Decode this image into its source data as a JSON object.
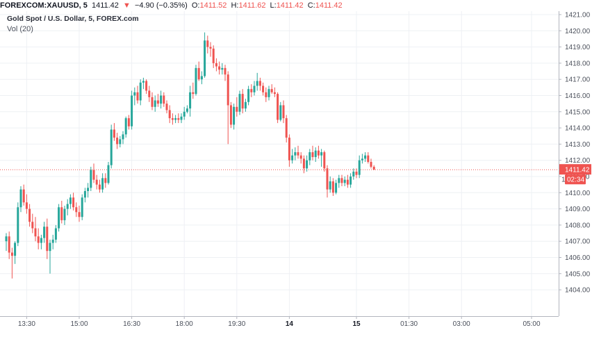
{
  "header": {
    "symbol": "FOREXCOM:XAUUSD, 5",
    "last": "1411.42",
    "change_arrow": "▼",
    "change": "−4.90 (−0.35%)",
    "o_label": "O:",
    "o": "1411.52",
    "h_label": "H:",
    "h": "1411.62",
    "l_label": "L:",
    "l": "1411.42",
    "c_label": "C:",
    "c": "1411.42"
  },
  "legend": {
    "title": "Gold Spot / U.S. Dollar, 5, FOREX.com",
    "volume": "Vol (20)"
  },
  "colors": {
    "up": "#26a69a",
    "down": "#ef5350",
    "price_line": "#ef5350",
    "countdown_bg": "#ef5350"
  },
  "chart_data": {
    "type": "candlestick",
    "title": "Gold Spot / U.S. Dollar, 5, FOREX.com",
    "ylim": [
      1403.3,
      1421.6
    ],
    "y_ticks": [
      "1404.00",
      "1405.00",
      "1406.00",
      "1407.00",
      "1408.00",
      "1409.00",
      "1410.00",
      "1411.00",
      "1412.00",
      "1413.00",
      "1414.00",
      "1415.00",
      "1416.00",
      "1417.00",
      "1418.00",
      "1419.00",
      "1420.00",
      "1421.00"
    ],
    "x_ticks": [
      {
        "label": "13:30",
        "bar": 7,
        "bold": false
      },
      {
        "label": "15:00",
        "bar": 25,
        "bold": false
      },
      {
        "label": "16:30",
        "bar": 43,
        "bold": false
      },
      {
        "label": "18:00",
        "bar": 61,
        "bold": false
      },
      {
        "label": "19:30",
        "bar": 79,
        "bold": false
      },
      {
        "label": "14",
        "bar": 97,
        "bold": true
      },
      {
        "label": "15",
        "bar": 120,
        "bold": true
      },
      {
        "label": "01:30",
        "bar": 138,
        "bold": false
      },
      {
        "label": "03:00",
        "bar": 156,
        "bold": false
      },
      {
        "label": "05:00",
        "bar": 180,
        "bold": false
      }
    ],
    "last_price": 1411.42,
    "last_price_label": "1411.42",
    "countdown": "02:34",
    "axis_partial_label": "1",
    "candles": [
      {
        "o": 1407.0,
        "h": 1407.5,
        "l": 1406.4,
        "c": 1407.3
      },
      {
        "o": 1407.3,
        "h": 1407.6,
        "l": 1405.9,
        "c": 1406.3
      },
      {
        "o": 1406.3,
        "h": 1406.6,
        "l": 1404.7,
        "c": 1406.1
      },
      {
        "o": 1406.1,
        "h": 1407.0,
        "l": 1405.6,
        "c": 1406.9
      },
      {
        "o": 1406.9,
        "h": 1409.4,
        "l": 1406.7,
        "c": 1409.1
      },
      {
        "o": 1409.1,
        "h": 1410.4,
        "l": 1408.8,
        "c": 1410.2
      },
      {
        "o": 1410.2,
        "h": 1410.5,
        "l": 1409.2,
        "c": 1409.4
      },
      {
        "o": 1409.4,
        "h": 1409.9,
        "l": 1408.7,
        "c": 1409.0
      },
      {
        "o": 1409.0,
        "h": 1409.3,
        "l": 1407.9,
        "c": 1408.2
      },
      {
        "o": 1408.2,
        "h": 1408.7,
        "l": 1407.5,
        "c": 1407.8
      },
      {
        "o": 1407.8,
        "h": 1408.5,
        "l": 1407.0,
        "c": 1407.3
      },
      {
        "o": 1407.3,
        "h": 1407.8,
        "l": 1406.5,
        "c": 1406.9
      },
      {
        "o": 1406.9,
        "h": 1407.4,
        "l": 1406.5,
        "c": 1407.2
      },
      {
        "o": 1407.2,
        "h": 1408.2,
        "l": 1406.9,
        "c": 1407.9
      },
      {
        "o": 1407.9,
        "h": 1408.4,
        "l": 1405.9,
        "c": 1406.4
      },
      {
        "o": 1406.4,
        "h": 1407.1,
        "l": 1405.0,
        "c": 1406.9
      },
      {
        "o": 1406.9,
        "h": 1407.4,
        "l": 1406.5,
        "c": 1407.1
      },
      {
        "o": 1407.1,
        "h": 1408.0,
        "l": 1406.9,
        "c": 1407.8
      },
      {
        "o": 1407.8,
        "h": 1409.3,
        "l": 1407.6,
        "c": 1409.1
      },
      {
        "o": 1409.1,
        "h": 1409.5,
        "l": 1408.1,
        "c": 1408.3
      },
      {
        "o": 1408.3,
        "h": 1409.2,
        "l": 1408.0,
        "c": 1409.0
      },
      {
        "o": 1409.0,
        "h": 1409.6,
        "l": 1408.6,
        "c": 1409.3
      },
      {
        "o": 1409.3,
        "h": 1409.9,
        "l": 1409.0,
        "c": 1409.7
      },
      {
        "o": 1409.7,
        "h": 1410.0,
        "l": 1408.9,
        "c": 1409.1
      },
      {
        "o": 1409.1,
        "h": 1409.4,
        "l": 1408.5,
        "c": 1408.8
      },
      {
        "o": 1408.8,
        "h": 1409.2,
        "l": 1408.2,
        "c": 1408.5
      },
      {
        "o": 1408.5,
        "h": 1409.9,
        "l": 1408.3,
        "c": 1409.7
      },
      {
        "o": 1409.7,
        "h": 1410.3,
        "l": 1409.4,
        "c": 1410.1
      },
      {
        "o": 1410.1,
        "h": 1410.6,
        "l": 1409.7,
        "c": 1410.3
      },
      {
        "o": 1410.3,
        "h": 1411.6,
        "l": 1410.1,
        "c": 1411.4
      },
      {
        "o": 1411.4,
        "h": 1411.8,
        "l": 1410.6,
        "c": 1410.8
      },
      {
        "o": 1410.8,
        "h": 1411.1,
        "l": 1410.2,
        "c": 1410.5
      },
      {
        "o": 1410.5,
        "h": 1410.8,
        "l": 1410.0,
        "c": 1410.2
      },
      {
        "o": 1410.2,
        "h": 1411.2,
        "l": 1410.0,
        "c": 1410.9
      },
      {
        "o": 1410.9,
        "h": 1411.2,
        "l": 1410.3,
        "c": 1410.6
      },
      {
        "o": 1410.6,
        "h": 1411.9,
        "l": 1410.5,
        "c": 1411.7
      },
      {
        "o": 1411.7,
        "h": 1414.2,
        "l": 1411.5,
        "c": 1413.9
      },
      {
        "o": 1413.9,
        "h": 1414.3,
        "l": 1413.2,
        "c": 1413.4
      },
      {
        "o": 1413.4,
        "h": 1413.7,
        "l": 1412.7,
        "c": 1413.0
      },
      {
        "o": 1413.0,
        "h": 1413.5,
        "l": 1412.8,
        "c": 1413.3
      },
      {
        "o": 1413.3,
        "h": 1413.8,
        "l": 1413.0,
        "c": 1413.6
      },
      {
        "o": 1413.6,
        "h": 1414.7,
        "l": 1413.4,
        "c": 1414.6
      },
      {
        "o": 1414.6,
        "h": 1414.8,
        "l": 1413.9,
        "c": 1414.1
      },
      {
        "o": 1414.1,
        "h": 1416.3,
        "l": 1413.9,
        "c": 1416.0
      },
      {
        "o": 1416.0,
        "h": 1416.5,
        "l": 1415.4,
        "c": 1416.2
      },
      {
        "o": 1416.2,
        "h": 1416.6,
        "l": 1415.5,
        "c": 1415.7
      },
      {
        "o": 1415.7,
        "h": 1417.0,
        "l": 1415.4,
        "c": 1416.8
      },
      {
        "o": 1416.8,
        "h": 1417.1,
        "l": 1416.4,
        "c": 1416.9
      },
      {
        "o": 1416.9,
        "h": 1417.0,
        "l": 1416.1,
        "c": 1416.3
      },
      {
        "o": 1416.3,
        "h": 1416.6,
        "l": 1415.6,
        "c": 1415.9
      },
      {
        "o": 1415.9,
        "h": 1416.2,
        "l": 1415.1,
        "c": 1415.3
      },
      {
        "o": 1415.3,
        "h": 1416.0,
        "l": 1415.0,
        "c": 1415.7
      },
      {
        "o": 1415.7,
        "h": 1416.1,
        "l": 1415.3,
        "c": 1415.5
      },
      {
        "o": 1415.5,
        "h": 1416.3,
        "l": 1415.2,
        "c": 1416.0
      },
      {
        "o": 1416.0,
        "h": 1416.2,
        "l": 1415.3,
        "c": 1415.5
      },
      {
        "o": 1415.5,
        "h": 1415.7,
        "l": 1414.9,
        "c": 1415.1
      },
      {
        "o": 1415.1,
        "h": 1415.4,
        "l": 1414.3,
        "c": 1414.6
      },
      {
        "o": 1414.6,
        "h": 1414.9,
        "l": 1414.2,
        "c": 1414.5
      },
      {
        "o": 1414.5,
        "h": 1414.8,
        "l": 1414.3,
        "c": 1414.6
      },
      {
        "o": 1414.6,
        "h": 1414.9,
        "l": 1414.3,
        "c": 1414.5
      },
      {
        "o": 1414.5,
        "h": 1414.9,
        "l": 1414.3,
        "c": 1414.7
      },
      {
        "o": 1414.7,
        "h": 1415.3,
        "l": 1414.5,
        "c": 1415.0
      },
      {
        "o": 1415.0,
        "h": 1415.4,
        "l": 1414.9,
        "c": 1415.2
      },
      {
        "o": 1415.2,
        "h": 1416.6,
        "l": 1414.7,
        "c": 1416.2
      },
      {
        "o": 1416.2,
        "h": 1416.8,
        "l": 1415.8,
        "c": 1416.1
      },
      {
        "o": 1416.1,
        "h": 1417.9,
        "l": 1416.0,
        "c": 1417.7
      },
      {
        "o": 1417.7,
        "h": 1418.1,
        "l": 1416.9,
        "c": 1417.0
      },
      {
        "o": 1417.0,
        "h": 1417.5,
        "l": 1416.7,
        "c": 1417.2
      },
      {
        "o": 1417.2,
        "h": 1419.9,
        "l": 1417.1,
        "c": 1419.4
      },
      {
        "o": 1419.4,
        "h": 1419.7,
        "l": 1418.6,
        "c": 1419.0
      },
      {
        "o": 1419.0,
        "h": 1419.3,
        "l": 1418.4,
        "c": 1418.9
      },
      {
        "o": 1418.9,
        "h": 1419.1,
        "l": 1417.7,
        "c": 1418.0
      },
      {
        "o": 1418.0,
        "h": 1418.3,
        "l": 1417.5,
        "c": 1417.8
      },
      {
        "o": 1417.8,
        "h": 1418.1,
        "l": 1417.3,
        "c": 1417.6
      },
      {
        "o": 1417.6,
        "h": 1418.0,
        "l": 1417.3,
        "c": 1417.7
      },
      {
        "o": 1417.7,
        "h": 1417.9,
        "l": 1416.9,
        "c": 1417.3
      },
      {
        "o": 1417.3,
        "h": 1417.5,
        "l": 1413.0,
        "c": 1415.4
      },
      {
        "o": 1415.4,
        "h": 1415.6,
        "l": 1414.0,
        "c": 1414.2
      },
      {
        "o": 1414.2,
        "h": 1415.5,
        "l": 1413.9,
        "c": 1415.3
      },
      {
        "o": 1415.3,
        "h": 1415.9,
        "l": 1414.7,
        "c": 1415.0
      },
      {
        "o": 1415.0,
        "h": 1416.3,
        "l": 1414.8,
        "c": 1416.1
      },
      {
        "o": 1416.1,
        "h": 1416.4,
        "l": 1414.9,
        "c": 1415.2
      },
      {
        "o": 1415.2,
        "h": 1415.8,
        "l": 1415.0,
        "c": 1415.6
      },
      {
        "o": 1415.6,
        "h": 1416.6,
        "l": 1415.4,
        "c": 1416.4
      },
      {
        "o": 1416.4,
        "h": 1416.7,
        "l": 1415.9,
        "c": 1416.2
      },
      {
        "o": 1416.2,
        "h": 1416.9,
        "l": 1416.0,
        "c": 1416.6
      },
      {
        "o": 1416.6,
        "h": 1417.4,
        "l": 1416.3,
        "c": 1416.9
      },
      {
        "o": 1416.9,
        "h": 1417.1,
        "l": 1416.3,
        "c": 1416.6
      },
      {
        "o": 1416.6,
        "h": 1416.8,
        "l": 1416.0,
        "c": 1416.2
      },
      {
        "o": 1416.2,
        "h": 1416.5,
        "l": 1415.6,
        "c": 1415.9
      },
      {
        "o": 1415.9,
        "h": 1416.6,
        "l": 1415.7,
        "c": 1416.4
      },
      {
        "o": 1416.4,
        "h": 1416.7,
        "l": 1416.1,
        "c": 1416.2
      },
      {
        "o": 1416.2,
        "h": 1416.5,
        "l": 1415.9,
        "c": 1416.1
      },
      {
        "o": 1416.1,
        "h": 1416.2,
        "l": 1414.3,
        "c": 1414.5
      },
      {
        "o": 1414.5,
        "h": 1415.6,
        "l": 1414.4,
        "c": 1415.4
      },
      {
        "o": 1415.4,
        "h": 1415.7,
        "l": 1414.3,
        "c": 1414.6
      },
      {
        "o": 1414.6,
        "h": 1414.8,
        "l": 1413.1,
        "c": 1413.4
      },
      {
        "o": 1413.4,
        "h": 1413.6,
        "l": 1411.6,
        "c": 1412.0
      },
      {
        "o": 1412.0,
        "h": 1412.7,
        "l": 1411.8,
        "c": 1412.3
      },
      {
        "o": 1412.3,
        "h": 1412.8,
        "l": 1412.0,
        "c": 1412.5
      },
      {
        "o": 1412.5,
        "h": 1412.9,
        "l": 1412.1,
        "c": 1412.3
      },
      {
        "o": 1412.3,
        "h": 1412.5,
        "l": 1411.8,
        "c": 1412.1
      },
      {
        "o": 1412.1,
        "h": 1412.3,
        "l": 1411.2,
        "c": 1411.5
      },
      {
        "o": 1411.5,
        "h": 1412.3,
        "l": 1411.3,
        "c": 1412.0
      },
      {
        "o": 1412.0,
        "h": 1412.7,
        "l": 1411.7,
        "c": 1412.5
      },
      {
        "o": 1412.5,
        "h": 1412.9,
        "l": 1412.0,
        "c": 1412.2
      },
      {
        "o": 1412.2,
        "h": 1412.8,
        "l": 1411.9,
        "c": 1412.6
      },
      {
        "o": 1412.6,
        "h": 1412.9,
        "l": 1412.1,
        "c": 1412.3
      },
      {
        "o": 1412.3,
        "h": 1412.7,
        "l": 1411.6,
        "c": 1412.5
      },
      {
        "o": 1412.5,
        "h": 1412.6,
        "l": 1411.3,
        "c": 1411.5
      },
      {
        "o": 1411.5,
        "h": 1411.7,
        "l": 1409.7,
        "c": 1410.2
      },
      {
        "o": 1410.2,
        "h": 1411.0,
        "l": 1410.0,
        "c": 1410.7
      },
      {
        "o": 1410.7,
        "h": 1410.9,
        "l": 1409.8,
        "c": 1410.0
      },
      {
        "o": 1410.0,
        "h": 1410.8,
        "l": 1409.9,
        "c": 1410.6
      },
      {
        "o": 1410.6,
        "h": 1411.1,
        "l": 1410.3,
        "c": 1410.9
      },
      {
        "o": 1410.9,
        "h": 1411.1,
        "l": 1410.4,
        "c": 1410.6
      },
      {
        "o": 1410.6,
        "h": 1411.0,
        "l": 1410.4,
        "c": 1410.8
      },
      {
        "o": 1410.8,
        "h": 1411.1,
        "l": 1410.3,
        "c": 1410.5
      },
      {
        "o": 1410.5,
        "h": 1411.2,
        "l": 1410.3,
        "c": 1411.0
      },
      {
        "o": 1411.0,
        "h": 1411.5,
        "l": 1410.8,
        "c": 1411.3
      },
      {
        "o": 1411.3,
        "h": 1411.5,
        "l": 1410.9,
        "c": 1411.1
      },
      {
        "o": 1411.1,
        "h": 1412.3,
        "l": 1410.9,
        "c": 1412.0
      },
      {
        "o": 1412.0,
        "h": 1412.4,
        "l": 1411.8,
        "c": 1412.1
      },
      {
        "o": 1412.1,
        "h": 1412.5,
        "l": 1411.9,
        "c": 1412.3
      },
      {
        "o": 1412.3,
        "h": 1412.5,
        "l": 1411.8,
        "c": 1411.9
      },
      {
        "o": 1411.9,
        "h": 1412.1,
        "l": 1411.5,
        "c": 1411.6
      },
      {
        "o": 1411.6,
        "h": 1411.7,
        "l": 1411.4,
        "c": 1411.42
      }
    ]
  }
}
